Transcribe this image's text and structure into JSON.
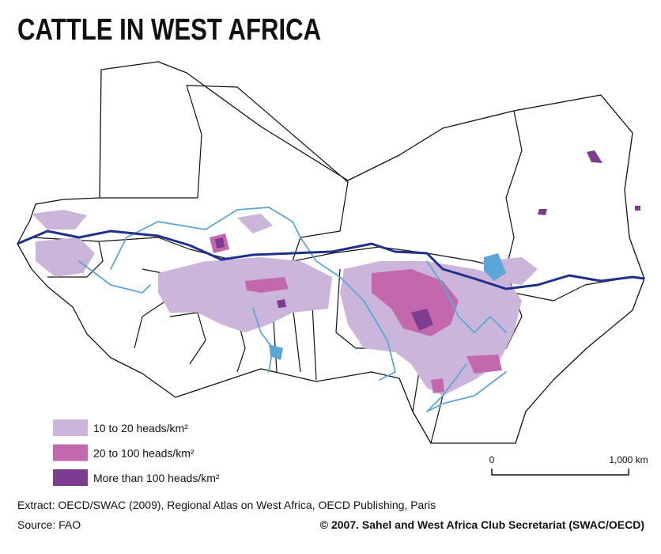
{
  "title": "CATTLE IN WEST AFRICA",
  "legend": [
    {
      "label": "10 to 20 heads/km²",
      "color": "#cbb5da"
    },
    {
      "label": "20 to 100 heads/km²",
      "color": "#c468ae"
    },
    {
      "label": "More than 100 heads/km²",
      "color": "#7d3c8f"
    }
  ],
  "scale_bar": {
    "start_label": "0",
    "end_label": "1,000 km"
  },
  "credits": {
    "extract": "Extract: OECD/SWAC (2009), Regional Atlas on West Africa, OECD Publishing, Paris",
    "source": "Source: FAO",
    "copyright": "© 2007. Sahel and West Africa Club Secretariat (SWAC/OECD)"
  }
}
